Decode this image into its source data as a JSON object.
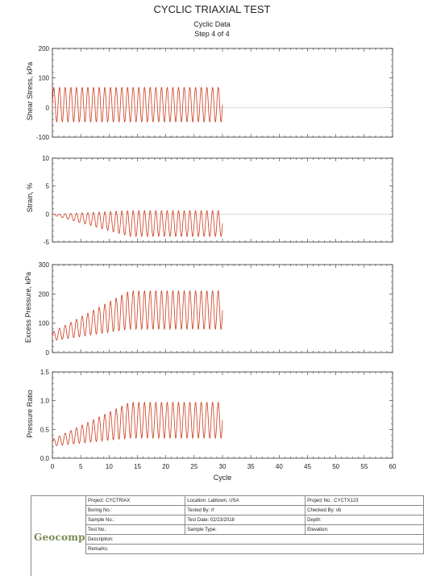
{
  "header": {
    "title": "CYCLIC TRIAXIAL TEST",
    "subtitle": "Cyclic Data",
    "step": "Step 4 of 4"
  },
  "chart_data": [
    {
      "type": "line",
      "ylabel": "Shear Stress, kPa",
      "xlim": [
        0,
        60
      ],
      "ylim": [
        -100,
        200
      ],
      "yticks": [
        -100,
        0,
        100,
        200
      ],
      "series": [
        {
          "cycles": 30,
          "mean": 10,
          "amplitude_start": 58,
          "amplitude_end": 58,
          "color": "#cc3a1a"
        }
      ]
    },
    {
      "type": "line",
      "ylabel": "Strain, %",
      "xlim": [
        0,
        60
      ],
      "ylim": [
        -5,
        10
      ],
      "yticks": [
        -5,
        0,
        5,
        10
      ],
      "series": [
        {
          "cycles": 30,
          "mean_start": -0.1,
          "mean_end": -1.7,
          "amplitude_start": 0.05,
          "amplitude_end": 2.3,
          "color": "#cc3a1a"
        }
      ]
    },
    {
      "type": "line",
      "ylabel": "Excess Pressure, kPa",
      "xlim": [
        0,
        60
      ],
      "ylim": [
        0,
        300
      ],
      "yticks": [
        0,
        100,
        200,
        300
      ],
      "series": [
        {
          "cycles": 30,
          "mean_start": 55,
          "mean_end": 145,
          "amplitude_start": 15,
          "amplitude_end": 65,
          "color": "#cc3a1a"
        }
      ]
    },
    {
      "type": "line",
      "ylabel": "Pressure Ratio",
      "xlabel": "Cycle",
      "xlim": [
        0,
        60
      ],
      "ylim": [
        0,
        1.5
      ],
      "yticks": [
        0.0,
        0.5,
        1.0,
        1.5
      ],
      "xticks": [
        0,
        5,
        10,
        15,
        20,
        25,
        30,
        35,
        40,
        45,
        50,
        55,
        60
      ],
      "series": [
        {
          "cycles": 30,
          "mean_start": 0.27,
          "mean_end": 0.66,
          "amplitude_start": 0.06,
          "amplitude_end": 0.31,
          "color": "#cc3a1a"
        }
      ]
    }
  ],
  "footer": {
    "logo": "Geocomp",
    "rows": [
      [
        "Project: CYCTRIAX",
        "Location: Labtown, USA",
        "Project No.: CYCTX123"
      ],
      [
        "Boring No.:",
        "Tested By: rf",
        "Checked By: vb"
      ],
      [
        "Sample No.:",
        "Test Date: 02/23/2018",
        "Depth:"
      ],
      [
        "Test No.:",
        "Sample Type:",
        "Elevation:"
      ]
    ],
    "description": "Description:",
    "remarks": "Remarks:"
  }
}
